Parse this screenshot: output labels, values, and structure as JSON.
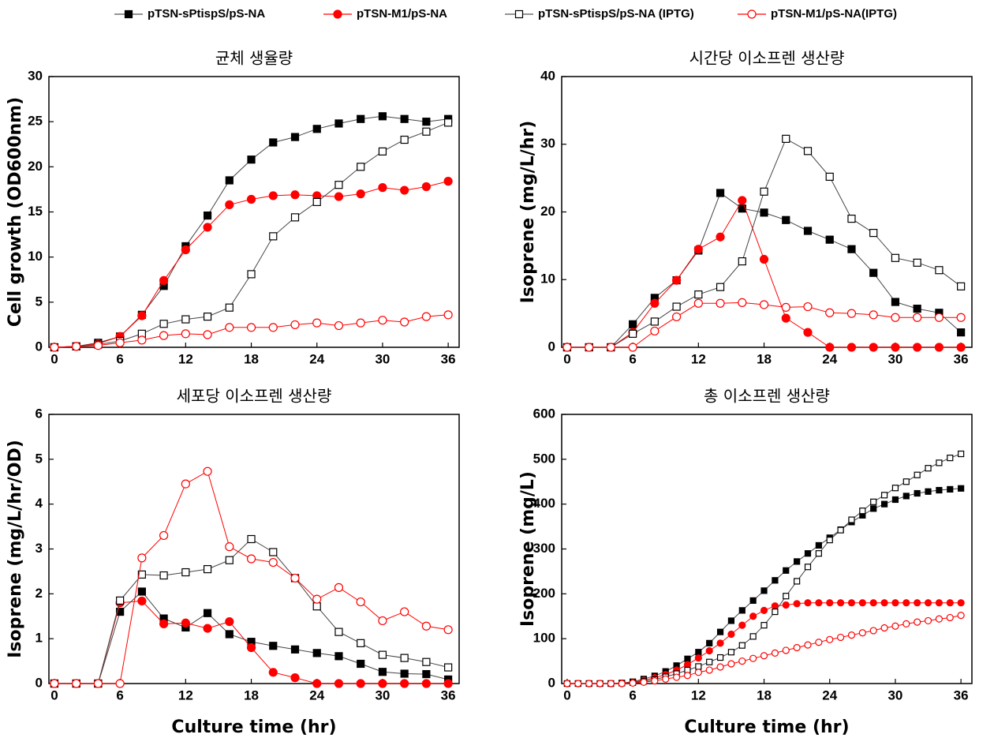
{
  "chart_data": [
    {
      "type": "line",
      "title": "균체 생율량",
      "ylabel": "Cell growth (OD600nm)",
      "x": [
        0,
        2,
        4,
        6,
        8,
        10,
        12,
        14,
        16,
        18,
        20,
        22,
        24,
        26,
        28,
        30,
        32,
        34,
        36
      ],
      "xlim": [
        -0.5,
        37
      ],
      "xticks": [
        0,
        6,
        12,
        18,
        24,
        30,
        36
      ],
      "ylim": [
        0,
        30
      ],
      "yticks": [
        0,
        5,
        10,
        15,
        20,
        25,
        30
      ],
      "series": [
        {
          "name": "pTSN-sPtispS/pS-NA",
          "color": "#000000",
          "marker": "square",
          "filled": true,
          "values": [
            0,
            0.1,
            0.5,
            1.2,
            3.6,
            6.8,
            11.2,
            14.6,
            18.5,
            20.8,
            22.7,
            23.3,
            24.2,
            24.8,
            25.3,
            25.6,
            25.3,
            25.0,
            25.3
          ]
        },
        {
          "name": "pTSN-M1/pS-NA",
          "color": "#ff0000",
          "marker": "circle",
          "filled": true,
          "values": [
            0,
            0.1,
            0.4,
            1.2,
            3.5,
            7.4,
            10.8,
            13.3,
            15.8,
            16.4,
            16.8,
            16.9,
            16.8,
            16.7,
            17.0,
            17.7,
            17.4,
            17.8,
            18.4
          ]
        },
        {
          "name": "pTSN-sPtispS/pS-NA (IPTG)",
          "color": "#000000",
          "marker": "square",
          "filled": false,
          "values": [
            0,
            0.1,
            0.3,
            0.7,
            1.5,
            2.6,
            3.1,
            3.4,
            4.4,
            8.1,
            12.3,
            14.4,
            16.1,
            18.0,
            20.0,
            21.7,
            23.0,
            23.9,
            24.9
          ]
        },
        {
          "name": "pTSN-M1/pS-NA(IPTG)",
          "color": "#ff0000",
          "marker": "circle",
          "filled": false,
          "values": [
            0,
            0.1,
            0.2,
            0.5,
            0.8,
            1.3,
            1.5,
            1.4,
            2.2,
            2.2,
            2.2,
            2.5,
            2.7,
            2.4,
            2.7,
            3.0,
            2.8,
            3.4,
            3.6
          ]
        }
      ]
    },
    {
      "type": "line",
      "title": "시간당 이소프렌 생산량",
      "ylabel": "Isoprene (mg/L/hr)",
      "x": [
        0,
        2,
        4,
        6,
        8,
        10,
        12,
        14,
        16,
        18,
        20,
        22,
        24,
        26,
        28,
        30,
        32,
        34,
        36
      ],
      "xlim": [
        -0.5,
        37
      ],
      "xticks": [
        0,
        6,
        12,
        18,
        24,
        30,
        36
      ],
      "ylim": [
        0,
        40
      ],
      "yticks": [
        0,
        10,
        20,
        30,
        40
      ],
      "series": [
        {
          "name": "pTSN-sPtispS/pS-NA",
          "color": "#000000",
          "marker": "square",
          "filled": true,
          "values": [
            0,
            0,
            0,
            3.4,
            7.3,
            9.9,
            14.3,
            22.8,
            20.5,
            19.9,
            18.8,
            17.2,
            15.9,
            14.5,
            11.0,
            6.7,
            5.7,
            5.1,
            2.2
          ]
        },
        {
          "name": "pTSN-M1/pS-NA",
          "color": "#ff0000",
          "marker": "circle",
          "filled": true,
          "values": [
            0,
            0,
            0,
            2.2,
            6.5,
            9.9,
            14.5,
            16.3,
            21.7,
            13.0,
            4.3,
            2.2,
            0,
            0,
            0,
            0,
            0,
            0,
            0
          ]
        },
        {
          "name": "pTSN-sPtispS/pS-NA (IPTG)",
          "color": "#000000",
          "marker": "square",
          "filled": false,
          "values": [
            0,
            0,
            0,
            2.0,
            3.8,
            6.0,
            7.8,
            8.9,
            12.7,
            23.0,
            30.8,
            29.0,
            25.2,
            19.0,
            16.9,
            13.2,
            12.5,
            11.4,
            9.0
          ]
        },
        {
          "name": "pTSN-M1/pS-NA(IPTG)",
          "color": "#ff0000",
          "marker": "circle",
          "filled": false,
          "values": [
            0,
            0,
            0,
            0,
            2.4,
            4.5,
            6.5,
            6.5,
            6.6,
            6.3,
            5.9,
            6.0,
            5.1,
            5.0,
            4.8,
            4.4,
            4.4,
            4.4,
            4.4
          ]
        }
      ]
    },
    {
      "type": "line",
      "title": "세포당 이소프렌 생산량",
      "ylabel": "Isoprene (mg/L/hr/OD)",
      "xlabel": "Culture time (hr)",
      "x": [
        0,
        2,
        4,
        6,
        8,
        10,
        12,
        14,
        16,
        18,
        20,
        22,
        24,
        26,
        28,
        30,
        32,
        34,
        36
      ],
      "xlim": [
        -0.5,
        37
      ],
      "xticks": [
        0,
        6,
        12,
        18,
        24,
        30,
        36
      ],
      "ylim": [
        0,
        6
      ],
      "yticks": [
        0,
        1,
        2,
        3,
        4,
        5,
        6
      ],
      "series": [
        {
          "name": "pTSN-sPtispS/pS-NA",
          "color": "#000000",
          "marker": "square",
          "filled": true,
          "values": [
            0,
            0,
            0,
            1.6,
            2.05,
            1.45,
            1.25,
            1.57,
            1.1,
            0.93,
            0.84,
            0.76,
            0.68,
            0.61,
            0.44,
            0.26,
            0.22,
            0.21,
            0.09
          ]
        },
        {
          "name": "pTSN-M1/pS-NA",
          "color": "#ff0000",
          "marker": "circle",
          "filled": true,
          "values": [
            0,
            0,
            0,
            1.8,
            1.84,
            1.33,
            1.35,
            1.23,
            1.38,
            0.8,
            0.25,
            0.13,
            0,
            0,
            0,
            0,
            0,
            0,
            0
          ]
        },
        {
          "name": "pTSN-sPtispS/pS-NA (IPTG)",
          "color": "#000000",
          "marker": "square",
          "filled": false,
          "values": [
            0,
            0,
            0,
            1.85,
            2.43,
            2.41,
            2.48,
            2.55,
            2.75,
            3.22,
            2.93,
            2.35,
            1.72,
            1.15,
            0.9,
            0.64,
            0.57,
            0.48,
            0.36
          ]
        },
        {
          "name": "pTSN-M1/pS-NA(IPTG)",
          "color": "#ff0000",
          "marker": "circle",
          "filled": false,
          "values": [
            0,
            0,
            0,
            0,
            2.8,
            3.3,
            4.45,
            4.73,
            3.05,
            2.78,
            2.7,
            2.35,
            1.88,
            2.14,
            1.82,
            1.4,
            1.6,
            1.28,
            1.2
          ]
        }
      ]
    },
    {
      "type": "line",
      "title": "총 이소프렌 생산량",
      "ylabel": "Isoprene (mg/L)",
      "xlabel": "Culture time (hr)",
      "x": [
        0,
        1,
        2,
        3,
        4,
        5,
        6,
        7,
        8,
        9,
        10,
        11,
        12,
        13,
        14,
        15,
        16,
        17,
        18,
        19,
        20,
        21,
        22,
        23,
        24,
        25,
        26,
        27,
        28,
        29,
        30,
        31,
        32,
        33,
        34,
        35,
        36
      ],
      "xlim": [
        -0.5,
        37
      ],
      "xticks": [
        0,
        6,
        12,
        18,
        24,
        30,
        36
      ],
      "ylim": [
        0,
        600
      ],
      "yticks": [
        0,
        100,
        200,
        300,
        400,
        500,
        600
      ],
      "series": [
        {
          "name": "pTSN-sPtispS/pS-NA",
          "color": "#000000",
          "marker": "square",
          "filled": true,
          "values": [
            0,
            0,
            0,
            0,
            0,
            1,
            4,
            10,
            17,
            27,
            40,
            55,
            70,
            90,
            115,
            140,
            163,
            185,
            207,
            230,
            252,
            272,
            290,
            308,
            325,
            343,
            360,
            375,
            390,
            400,
            410,
            418,
            424,
            428,
            431,
            433,
            435
          ]
        },
        {
          "name": "pTSN-M1/pS-NA",
          "color": "#ff0000",
          "marker": "circle",
          "filled": true,
          "values": [
            0,
            0,
            0,
            0,
            0,
            1,
            3,
            7,
            13,
            20,
            30,
            42,
            57,
            73,
            90,
            110,
            130,
            150,
            163,
            173,
            175,
            178,
            180,
            180,
            180,
            180,
            180,
            180,
            180,
            180,
            180,
            180,
            180,
            180,
            180,
            180,
            180
          ]
        },
        {
          "name": "pTSN-sPtispS/pS-NA (IPTG)",
          "color": "#000000",
          "marker": "square",
          "filled": false,
          "values": [
            0,
            0,
            0,
            0,
            0,
            1,
            2,
            5,
            9,
            15,
            22,
            30,
            38,
            48,
            58,
            70,
            85,
            105,
            130,
            160,
            195,
            228,
            260,
            290,
            320,
            342,
            365,
            385,
            405,
            420,
            436,
            450,
            465,
            480,
            492,
            503,
            512
          ]
        },
        {
          "name": "pTSN-M1/pS-NA(IPTG)",
          "color": "#ff0000",
          "marker": "circle",
          "filled": false,
          "values": [
            0,
            0,
            0,
            0,
            0,
            0,
            1,
            3,
            6,
            10,
            14,
            18,
            25,
            30,
            37,
            44,
            50,
            56,
            62,
            68,
            74,
            80,
            86,
            92,
            98,
            103,
            108,
            113,
            118,
            124,
            128,
            133,
            137,
            140,
            144,
            147,
            152
          ]
        }
      ]
    }
  ]
}
